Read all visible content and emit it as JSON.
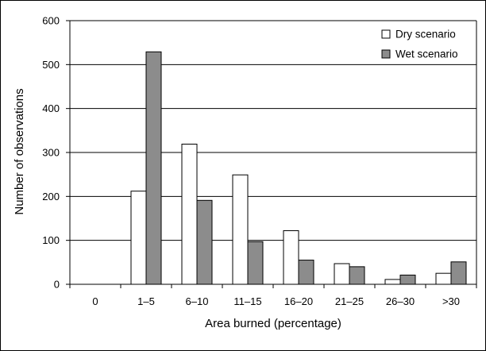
{
  "chart_data": {
    "type": "bar",
    "xlabel": "Area burned (percentage)",
    "ylabel": "Number of observations",
    "ylim": [
      0,
      600
    ],
    "yticks": [
      0,
      100,
      200,
      300,
      400,
      500,
      600
    ],
    "grid": true,
    "legend_position": "top-right",
    "categories": [
      "0",
      "1–5",
      "6–10",
      "11–15",
      "16–20",
      "21–25",
      "26–30",
      ">30"
    ],
    "series": [
      {
        "name": "Dry scenario",
        "color": "#ffffff",
        "values": [
          0,
          212,
          319,
          249,
          122,
          47,
          11,
          25
        ]
      },
      {
        "name": "Wet scenario",
        "color": "#8c8c8c",
        "values": [
          0,
          529,
          191,
          97,
          55,
          40,
          21,
          51
        ]
      }
    ]
  }
}
